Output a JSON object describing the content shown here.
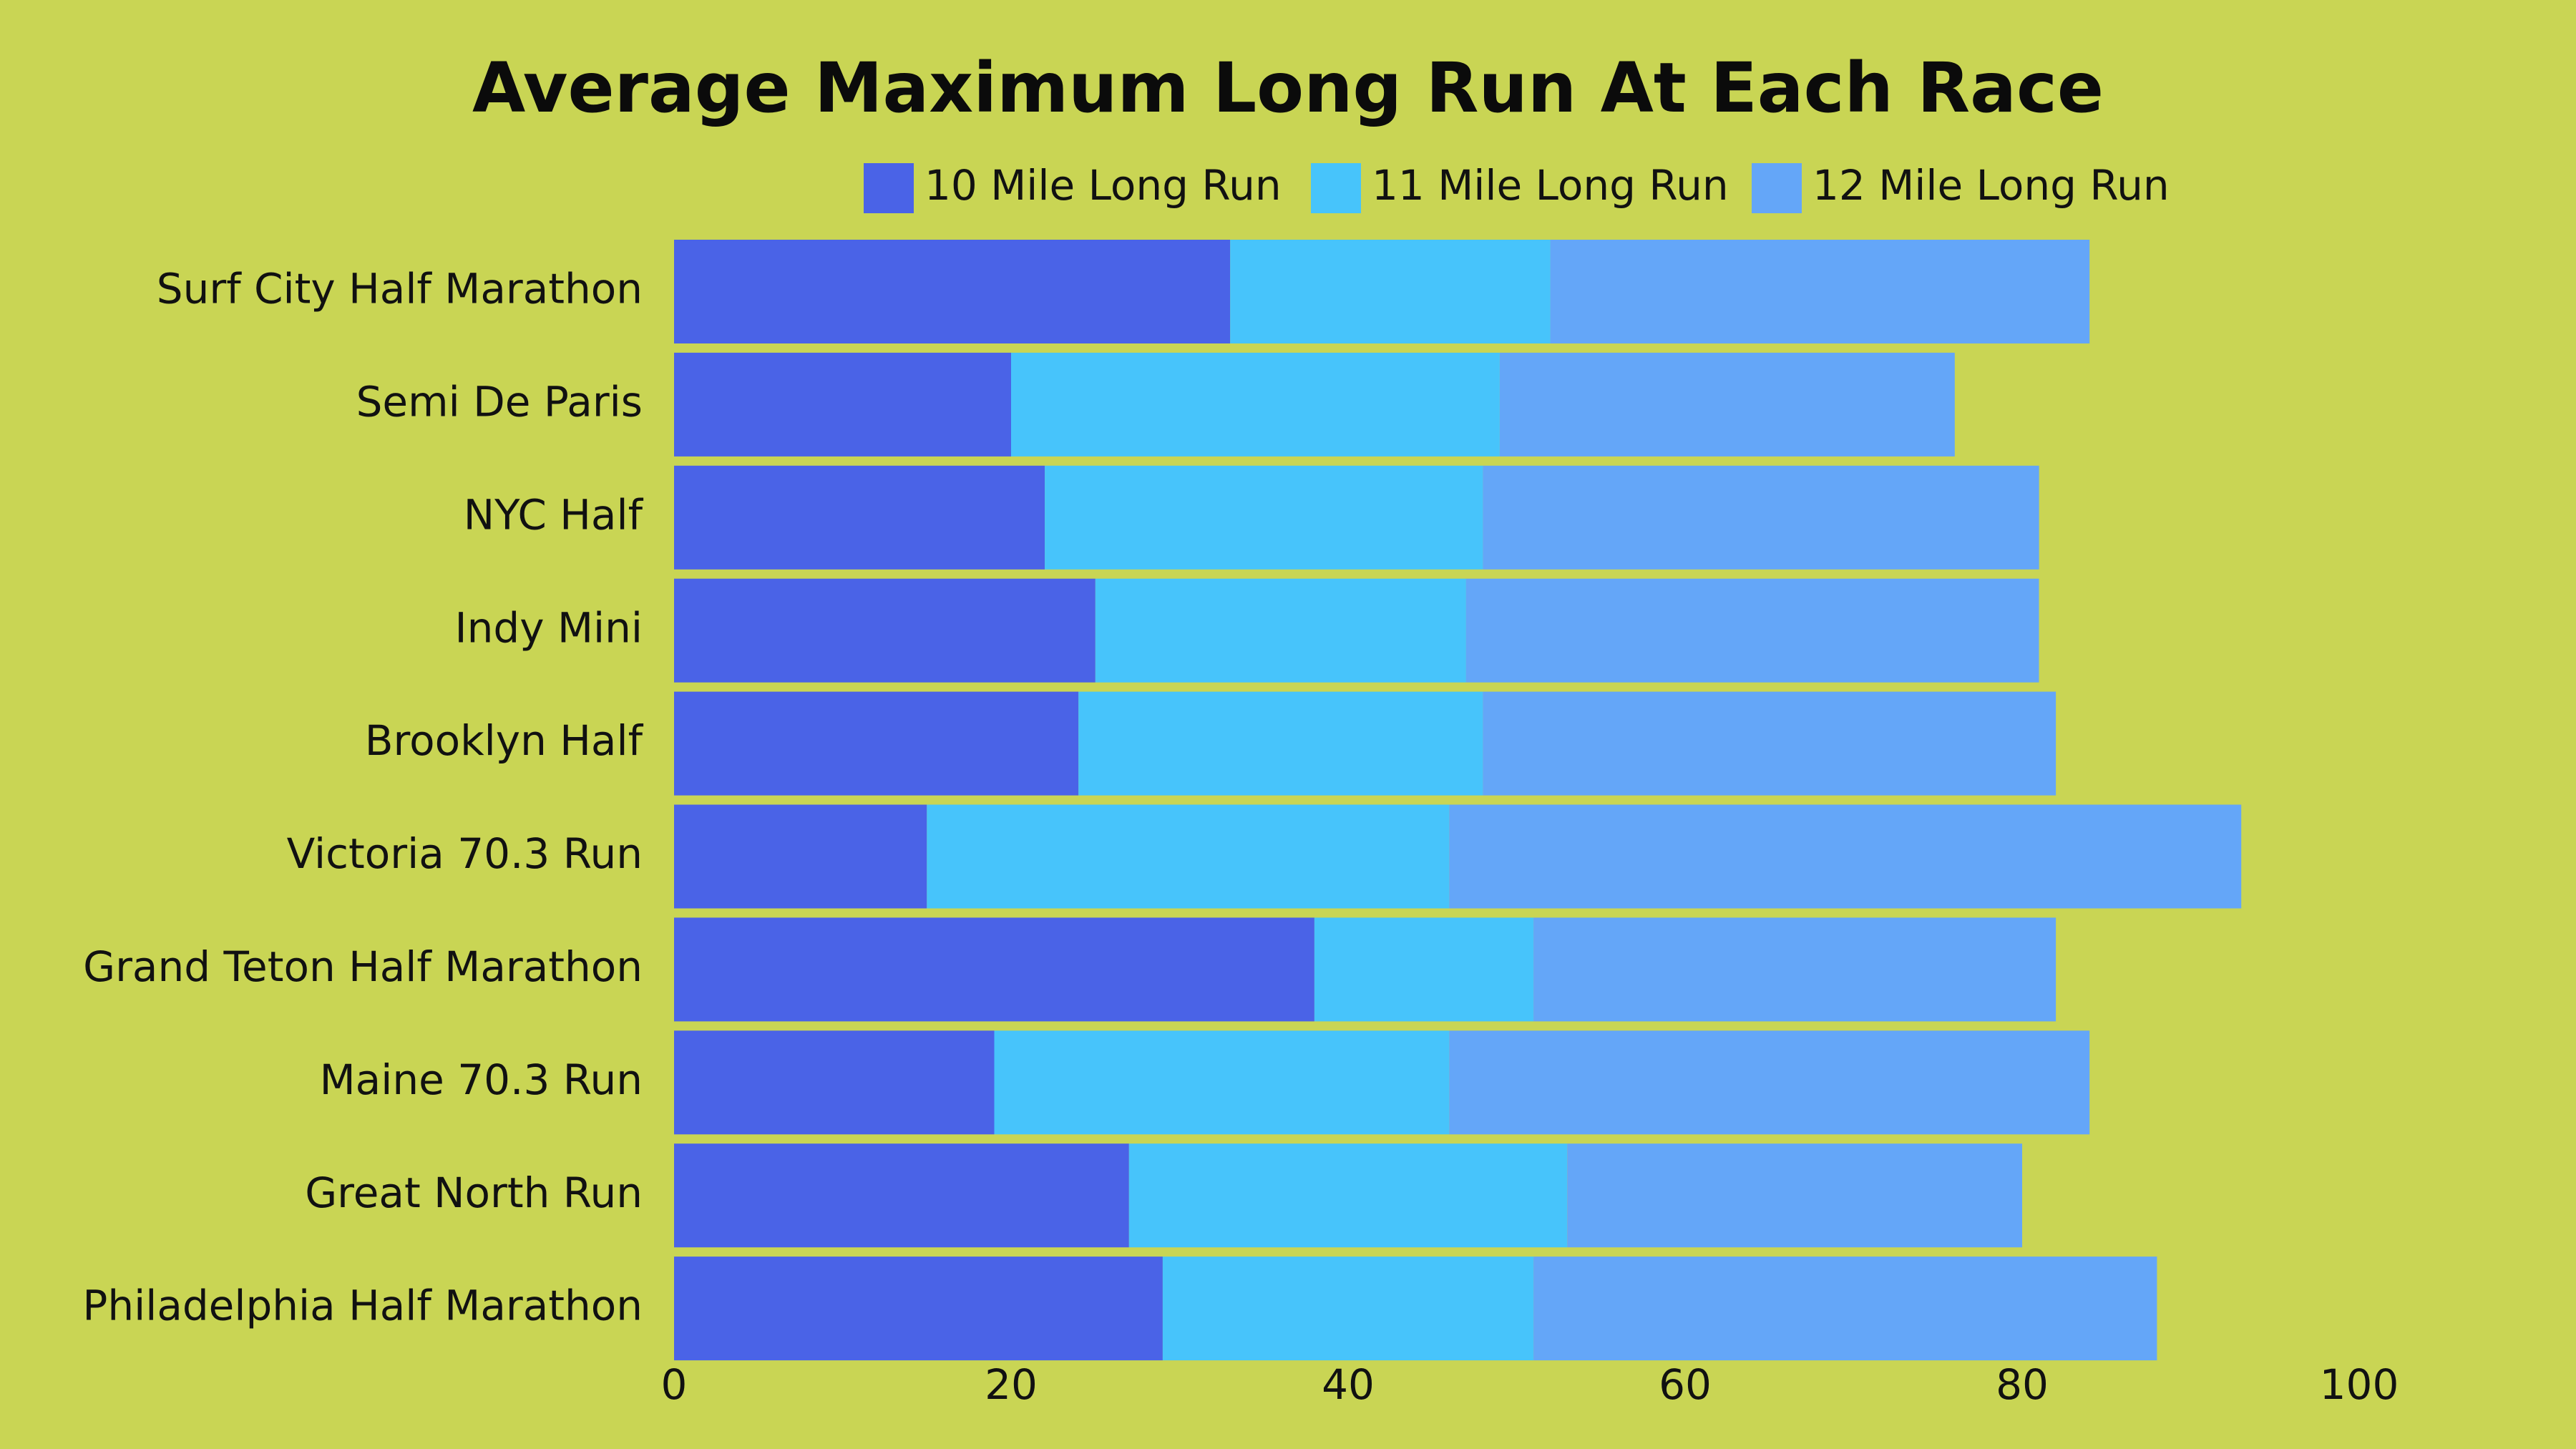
{
  "chart_data": {
    "type": "bar",
    "orientation": "horizontal",
    "stacked": true,
    "title": "Average Maximum Long Run At Each Race",
    "categories": [
      "Surf City Half Marathon",
      "Semi De Paris",
      "NYC Half",
      "Indy Mini",
      "Brooklyn Half",
      "Victoria 70.3 Run",
      "Grand Teton Half Marathon",
      "Maine 70.3 Run",
      "Great North Run",
      "Philadelphia Half Marathon"
    ],
    "series": [
      {
        "name": "10 Mile Long Run",
        "color": "#4a63e7",
        "values": [
          33,
          20,
          22,
          25,
          24,
          15,
          38,
          19,
          27,
          29
        ]
      },
      {
        "name": "11 Mile Long Run",
        "color": "#47c4fb",
        "values": [
          19,
          29,
          26,
          22,
          24,
          31,
          13,
          27,
          26,
          22
        ]
      },
      {
        "name": "12 Mile Long Run",
        "color": "#64a6f8",
        "values": [
          32,
          27,
          33,
          34,
          34,
          47,
          31,
          38,
          27,
          37
        ]
      }
    ],
    "xlim": [
      0,
      100
    ],
    "xticks": [
      "0",
      "20",
      "40",
      "60",
      "80",
      "100"
    ],
    "legend": "top",
    "grid": false
  }
}
